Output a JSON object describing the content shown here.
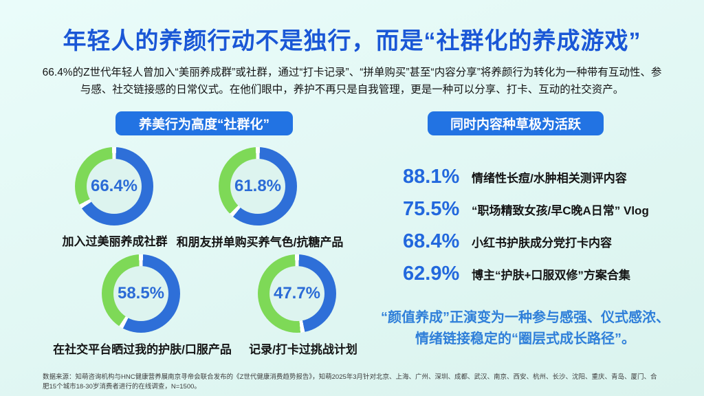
{
  "page": {
    "title": "年轻人的养颜行动不是独行，而是“社群化的养成游戏”",
    "intro": "66.4%的Z世代年轻人曾加入“美丽养成群”或社群，通过“打卡记录”、“拼单购买”甚至“内容分享”将养颜行为转化为一种带有互动性、参与感、社交链接感的日常仪式。在他们眼中，养护不再只是自我管理，更是一种可以分享、打卡、互动的社交资产。",
    "footnote": "数据来源：知萌咨询机构与HNC健康营养展南京寻帝会联合发布的《Z世代健康消费趋势报告》，知萌2025年3月针对北京、上海、广州、深圳、成都、武汉、南京、西安、杭州、长沙、沈阳、重庆、青岛、厦门、合肥15个城市18-30岁消费者进行的在线调查，N=1500。"
  },
  "left_section": {
    "header": "养美行为高度“社群化”"
  },
  "right_section": {
    "header": "同时内容种草极为活跃",
    "quote": "“颜值养成”正演变为一种参与感强、仪式感浓、情绪链接稳定的“圈层式成长路径”。"
  },
  "chart_data": {
    "type": "pie",
    "subtype": "donut",
    "legend": "none",
    "colors": {
      "primary": "#2e6fd8",
      "secondary": "#7ed957"
    },
    "donuts": [
      {
        "label": "加入过美丽养成社群",
        "value_pct": 66.4,
        "display": "66.4%",
        "remainder_pct": 33.6
      },
      {
        "label": "和朋友拼单购买养气色/抗糖产品",
        "value_pct": 61.8,
        "display": "61.8%",
        "remainder_pct": 38.2
      },
      {
        "label": "在社交平台晒过我的护肤/口服产品",
        "value_pct": 58.5,
        "display": "58.5%",
        "remainder_pct": 41.5
      },
      {
        "label": "记录/打卡过挑战计划",
        "value_pct": 47.7,
        "display": "47.7%",
        "remainder_pct": 52.3
      }
    ],
    "stat_list": [
      {
        "display": "88.1%",
        "value_pct": 88.1,
        "label": "情绪性长痘/水肿相关测评内容"
      },
      {
        "display": "75.5%",
        "value_pct": 75.5,
        "label": "“职场精致女孩/早C晚A日常” Vlog"
      },
      {
        "display": "68.4%",
        "value_pct": 68.4,
        "label": "小红书护肤成分党打卡内容"
      },
      {
        "display": "62.9%",
        "value_pct": 62.9,
        "label": "博主“护肤+口服双修”方案合集"
      }
    ]
  },
  "colors": {
    "background_top": "#eafcfa",
    "background_bottom": "#daf3ee",
    "title_blue": "#1a57d6",
    "badge_blue": "#2273e3",
    "donut_blue": "#2e6fd8",
    "donut_green": "#7ed957",
    "stat_blue": "#2268dd",
    "quote_blue": "#2f7fd9",
    "body_text": "#141414"
  }
}
